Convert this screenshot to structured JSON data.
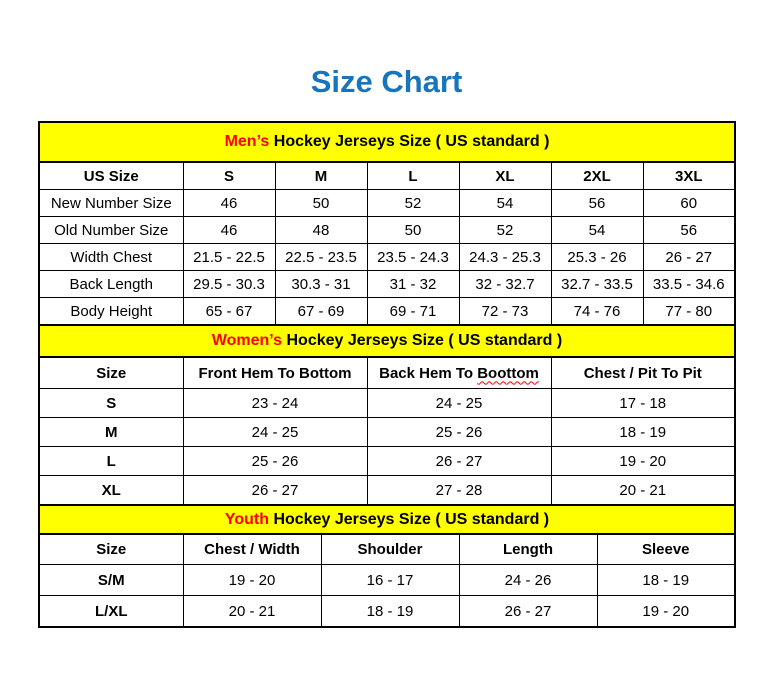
{
  "title": "Size Chart",
  "colors": {
    "accent_blue": "#1874BC",
    "banner_yellow": "#FFFF00",
    "highlight_red": "#FF0000"
  },
  "sections": {
    "men": {
      "banner": {
        "highlight": "Men’s",
        "rest": " Hockey Jerseys Size ( US standard )"
      },
      "headers": [
        "US Size",
        "S",
        "M",
        "L",
        "XL",
        "2XL",
        "3XL"
      ],
      "rows": [
        {
          "label": "New Number Size",
          "values": [
            "46",
            "50",
            "52",
            "54",
            "56",
            "60"
          ]
        },
        {
          "label": "Old Number Size",
          "values": [
            "46",
            "48",
            "50",
            "52",
            "54",
            "56"
          ]
        },
        {
          "label": "Width Chest",
          "values": [
            "21.5 - 22.5",
            "22.5 - 23.5",
            "23.5 - 24.3",
            "24.3 - 25.3",
            "25.3 - 26",
            "26 - 27"
          ]
        },
        {
          "label": "Back Length",
          "values": [
            "29.5 - 30.3",
            "30.3 - 31",
            "31 - 32",
            "32 - 32.7",
            "32.7 - 33.5",
            "33.5 - 34.6"
          ]
        },
        {
          "label": "Body Height",
          "values": [
            "65 - 67",
            "67 - 69",
            "69 - 71",
            "72 - 73",
            "74 - 76",
            "77 - 80"
          ]
        }
      ]
    },
    "women": {
      "banner": {
        "highlight": "Women’s",
        "rest": " Hockey Jerseys Size ( US standard )"
      },
      "headers": [
        {
          "text": "Size"
        },
        {
          "text": "Front Hem To Bottom"
        },
        {
          "text": "Back Hem To ",
          "misspelled": "Boottom"
        },
        {
          "text": "Chest / Pit To Pit"
        }
      ],
      "rows": [
        {
          "label": "S",
          "values": [
            "23 - 24",
            "24 - 25",
            "17 - 18"
          ]
        },
        {
          "label": "M",
          "values": [
            "24 - 25",
            "25 - 26",
            "18 - 19"
          ]
        },
        {
          "label": "L",
          "values": [
            "25 - 26",
            "26 - 27",
            "19 - 20"
          ]
        },
        {
          "label": "XL",
          "values": [
            "26 - 27",
            "27 - 28",
            "20 - 21"
          ]
        }
      ]
    },
    "youth": {
      "banner": {
        "highlight": "Youth",
        "rest": " Hockey Jerseys Size ( US standard )"
      },
      "headers": [
        "Size",
        "Chest / Width",
        "Shoulder",
        "Length",
        "Sleeve"
      ],
      "rows": [
        {
          "label": "S/M",
          "values": [
            "19 - 20",
            "16 - 17",
            "24 - 26",
            "18 - 19"
          ]
        },
        {
          "label": "L/XL",
          "values": [
            "20 - 21",
            "18 - 19",
            "26 - 27",
            "19 - 20"
          ]
        }
      ]
    }
  }
}
